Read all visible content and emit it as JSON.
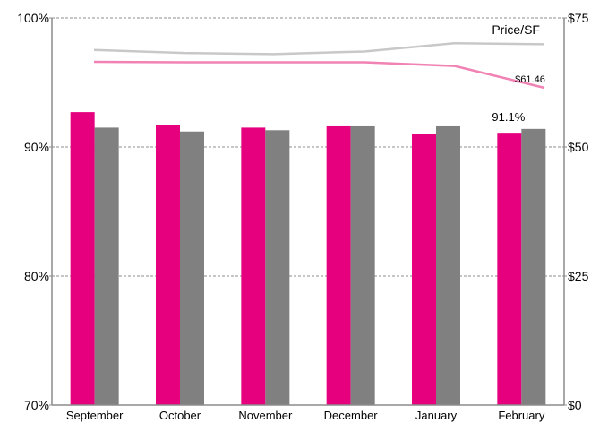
{
  "chart_data": {
    "type": "bar",
    "title": "",
    "xlabel": "",
    "ylabel": "",
    "categories": [
      "September",
      "October",
      "November",
      "December",
      "January",
      "February"
    ],
    "ylim": [
      70,
      100
    ],
    "y2lim": [
      0,
      75
    ],
    "y_ticks": [
      "70%",
      "80%",
      "90%",
      "100%"
    ],
    "y2_ticks": [
      "$0",
      "$25",
      "$50",
      "$75"
    ],
    "grid": true,
    "bar_series": [
      {
        "color": "#e6007e",
        "values": [
          92.7,
          91.7,
          91.5,
          91.6,
          91.0,
          91.1
        ]
      },
      {
        "color": "#808080",
        "values": [
          91.5,
          91.2,
          91.3,
          91.6,
          91.6,
          91.4
        ]
      }
    ],
    "line_series": [
      {
        "color": "#c8c8c8",
        "axis": "right",
        "values": [
          68.8,
          68.2,
          68.0,
          68.5,
          70.1,
          69.9
        ]
      },
      {
        "color": "#f082b4",
        "axis": "right",
        "values": [
          66.5,
          66.4,
          66.4,
          66.4,
          65.7,
          61.46
        ]
      }
    ],
    "annotations": {
      "bar_label": "91.1%",
      "line_label": "$61.46",
      "axis_title": "Price/SF"
    }
  }
}
